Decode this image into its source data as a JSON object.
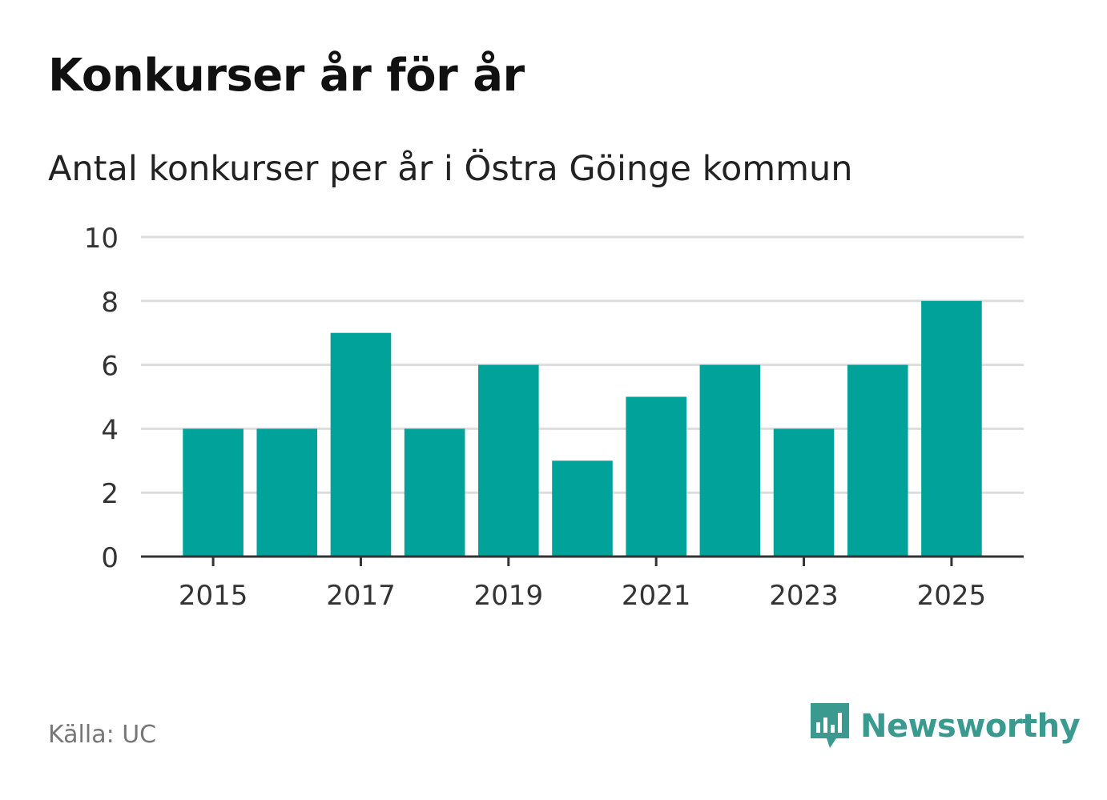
{
  "title": "Konkurser år för år",
  "subtitle": "Antal konkurser per år i Östra Göinge kommun",
  "source": "Källa: UC",
  "brand": {
    "name": "Newsworthy",
    "icon": "newsworthy-logo-icon",
    "color": "#3b9a8f"
  },
  "colors": {
    "bar": "#00a29a",
    "grid": "#dddddd",
    "axis": "#333333",
    "tick_text": "#333333"
  },
  "chart_data": {
    "type": "bar",
    "title": "Konkurser år för år",
    "subtitle": "Antal konkurser per år i Östra Göinge kommun",
    "xlabel": "",
    "ylabel": "",
    "categories": [
      "2015",
      "2016",
      "2017",
      "2018",
      "2019",
      "2020",
      "2021",
      "2022",
      "2023",
      "2024",
      "2025"
    ],
    "values": [
      4,
      4,
      7,
      4,
      6,
      3,
      5,
      6,
      4,
      6,
      8
    ],
    "x_tick_labels": [
      "2015",
      "2017",
      "2019",
      "2021",
      "2023",
      "2025"
    ],
    "y_ticks": [
      0,
      2,
      4,
      6,
      8,
      10
    ],
    "ylim": [
      0,
      10
    ],
    "grid": true,
    "legend": "none"
  }
}
